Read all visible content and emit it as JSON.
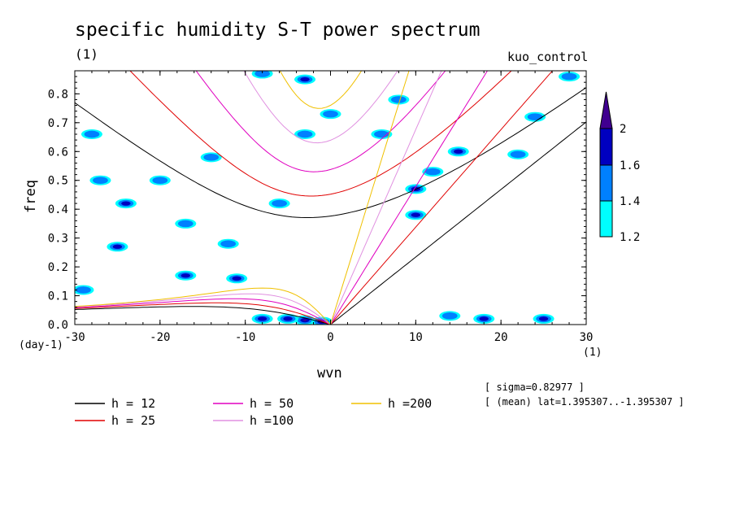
{
  "header": {
    "title": "specific humidity S-T power spectrum",
    "unit_one": "(1)",
    "run_name": "kuo_control"
  },
  "axes": {
    "xlabel": "wvn",
    "ylabel": "freq",
    "x_unit": "(1)",
    "y_unit": "(day-1)",
    "x_ticks": [
      "-30",
      "-20",
      "-10",
      "0",
      "10",
      "20",
      "30"
    ],
    "y_ticks": [
      "0.0",
      "0.1",
      "0.2",
      "0.3",
      "0.4",
      "0.5",
      "0.6",
      "0.7",
      "0.8"
    ]
  },
  "stats": {
    "sigma": "[ sigma=0.82977 ]",
    "mean": "[ (mean) lat=1.395307..-1.395307 ]"
  },
  "colorbar": {
    "labels": [
      "1.2",
      "1.4",
      "1.6",
      "2"
    ],
    "colors": [
      "#00ffff",
      "#0080ff",
      "#0000c0",
      "#400090"
    ]
  },
  "legend": [
    {
      "label": "h = 12",
      "color": "#000000"
    },
    {
      "label": "h = 25",
      "color": "#e00000"
    },
    {
      "label": "h = 50",
      "color": "#e000c0"
    },
    {
      "label": "h =100",
      "color": "#e090e0"
    },
    {
      "label": "h =200",
      "color": "#f0c000"
    }
  ],
  "chart_data": {
    "type": "heatmap",
    "title": "specific humidity S-T power spectrum",
    "xlabel": "wvn",
    "ylabel": "freq",
    "xlim": [
      -30,
      30
    ],
    "ylim": [
      0,
      0.88
    ],
    "x_ticks": [
      -30,
      -20,
      -10,
      0,
      10,
      20,
      30
    ],
    "y_ticks": [
      0,
      0.1,
      0.2,
      0.3,
      0.4,
      0.5,
      0.6,
      0.7,
      0.8
    ],
    "contour_levels": [
      1.2,
      1.4,
      1.6,
      2
    ],
    "level_colors": [
      "#00ffff",
      "#0080ff",
      "#0000c0",
      "#400090"
    ],
    "dispersion_curves": [
      {
        "name": "h = 12",
        "equivalent_depth": 12,
        "color": "#000000"
      },
      {
        "name": "h = 25",
        "equivalent_depth": 25,
        "color": "#e00000"
      },
      {
        "name": "h = 50",
        "equivalent_depth": 50,
        "color": "#e000c0"
      },
      {
        "name": "h =100",
        "equivalent_depth": 100,
        "color": "#e090e0"
      },
      {
        "name": "h =200",
        "equivalent_depth": 200,
        "color": "#f0c000"
      }
    ],
    "high_power_regions": [
      {
        "wvn": -3,
        "freq": 0.015,
        "level": 2
      },
      {
        "wvn": -5,
        "freq": 0.02,
        "level": 1.6
      },
      {
        "wvn": -8,
        "freq": 0.02,
        "level": 1.6
      },
      {
        "wvn": -1,
        "freq": 0.01,
        "level": 2
      },
      {
        "wvn": 18,
        "freq": 0.02,
        "level": 1.6
      },
      {
        "wvn": 25,
        "freq": 0.02,
        "level": 1.6
      },
      {
        "wvn": 14,
        "freq": 0.03,
        "level": 1.4
      },
      {
        "wvn": -11,
        "freq": 0.16,
        "level": 1.6
      },
      {
        "wvn": -17,
        "freq": 0.17,
        "level": 1.6
      },
      {
        "wvn": -25,
        "freq": 0.27,
        "level": 1.6
      },
      {
        "wvn": -24,
        "freq": 0.42,
        "level": 1.6
      },
      {
        "wvn": -27,
        "freq": 0.5,
        "level": 1.4
      },
      {
        "wvn": -17,
        "freq": 0.35,
        "level": 1.4
      },
      {
        "wvn": -6,
        "freq": 0.42,
        "level": 1.4
      },
      {
        "wvn": 10,
        "freq": 0.38,
        "level": 1.6
      },
      {
        "wvn": 10,
        "freq": 0.47,
        "level": 1.6
      },
      {
        "wvn": 15,
        "freq": 0.6,
        "level": 1.6
      },
      {
        "wvn": 22,
        "freq": 0.59,
        "level": 1.4
      },
      {
        "wvn": 12,
        "freq": 0.53,
        "level": 1.4
      },
      {
        "wvn": -3,
        "freq": 0.66,
        "level": 1.4
      },
      {
        "wvn": 0,
        "freq": 0.73,
        "level": 1.4
      },
      {
        "wvn": 8,
        "freq": 0.78,
        "level": 1.4
      },
      {
        "wvn": -8,
        "freq": 0.87,
        "level": 1.4
      },
      {
        "wvn": -3,
        "freq": 0.85,
        "level": 1.6
      },
      {
        "wvn": 6,
        "freq": 0.66,
        "level": 1.4
      },
      {
        "wvn": -12,
        "freq": 0.28,
        "level": 1.4
      },
      {
        "wvn": -29,
        "freq": 0.12,
        "level": 1.4
      },
      {
        "wvn": -28,
        "freq": 0.66,
        "level": 1.4
      },
      {
        "wvn": 28,
        "freq": 0.86,
        "level": 1.4
      },
      {
        "wvn": 24,
        "freq": 0.72,
        "level": 1.4
      },
      {
        "wvn": -14,
        "freq": 0.58,
        "level": 1.4
      },
      {
        "wvn": -20,
        "freq": 0.5,
        "level": 1.4
      }
    ]
  }
}
